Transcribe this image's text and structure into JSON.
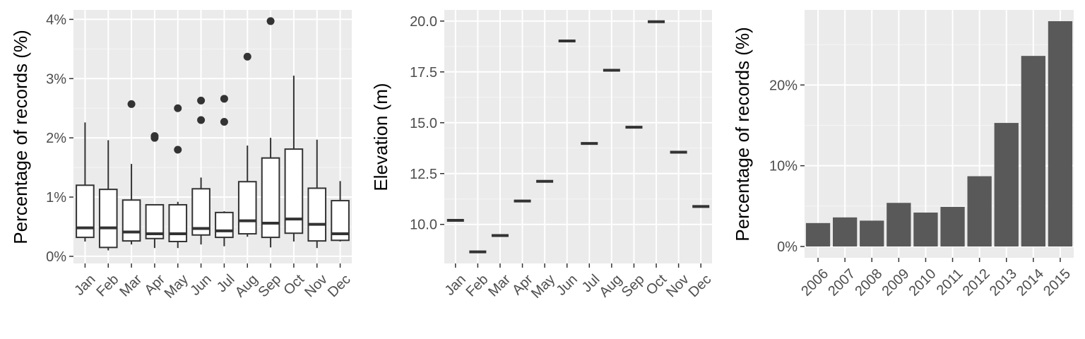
{
  "colors": {
    "panel_bg": "#ebebeb",
    "grid_major": "#ffffff",
    "grid_minor": "#f5f5f5",
    "bar_fill": "#595959",
    "mark_dark": "#333333",
    "tick_text": "#4d4d4d"
  },
  "chart_data": [
    {
      "type": "boxplot",
      "title": "",
      "xlabel": "",
      "ylabel": "Percentage of records (%)",
      "categories": [
        "Jan",
        "Feb",
        "Mar",
        "Apr",
        "May",
        "Jun",
        "Jul",
        "Aug",
        "Sep",
        "Oct",
        "Nov",
        "Dec"
      ],
      "boxes": [
        {
          "min": 0.25,
          "q1": 0.32,
          "median": 0.48,
          "q3": 1.2,
          "max": 2.26,
          "outliers": []
        },
        {
          "min": 0.1,
          "q1": 0.15,
          "median": 0.48,
          "q3": 1.13,
          "max": 1.96,
          "outliers": []
        },
        {
          "min": 0.2,
          "q1": 0.26,
          "median": 0.41,
          "q3": 0.95,
          "max": 1.56,
          "outliers": [
            2.57
          ]
        },
        {
          "min": 0.14,
          "q1": 0.3,
          "median": 0.38,
          "q3": 0.87,
          "max": 0.87,
          "outliers": [
            2.0,
            2.03
          ]
        },
        {
          "min": 0.14,
          "q1": 0.25,
          "median": 0.38,
          "q3": 0.87,
          "max": 0.92,
          "outliers": [
            1.8,
            2.5
          ]
        },
        {
          "min": 0.2,
          "q1": 0.36,
          "median": 0.47,
          "q3": 1.14,
          "max": 1.33,
          "outliers": [
            2.3,
            2.63
          ]
        },
        {
          "min": 0.17,
          "q1": 0.32,
          "median": 0.43,
          "q3": 0.74,
          "max": 0.76,
          "outliers": [
            2.27,
            2.66
          ]
        },
        {
          "min": 0.33,
          "q1": 0.38,
          "median": 0.6,
          "q3": 1.26,
          "max": 1.87,
          "outliers": [
            3.37
          ]
        },
        {
          "min": 0.15,
          "q1": 0.32,
          "median": 0.56,
          "q3": 1.66,
          "max": 2.0,
          "outliers": [
            3.97
          ]
        },
        {
          "min": 0.25,
          "q1": 0.39,
          "median": 0.63,
          "q3": 1.81,
          "max": 3.05,
          "outliers": []
        },
        {
          "min": 0.14,
          "q1": 0.26,
          "median": 0.54,
          "q3": 1.15,
          "max": 1.97,
          "outliers": []
        },
        {
          "min": 0.25,
          "q1": 0.27,
          "median": 0.38,
          "q3": 0.94,
          "max": 1.27,
          "outliers": []
        }
      ],
      "ylim": [
        -0.12,
        4.16
      ],
      "y_ticks": [
        0,
        1,
        2,
        3,
        4
      ],
      "y_tick_labels": [
        "0%",
        "1%",
        "2%",
        "3%",
        "4%"
      ],
      "grid": true,
      "legend": "none"
    },
    {
      "type": "crossbar",
      "title": "",
      "xlabel": "",
      "ylabel": "Elevation (m)",
      "categories": [
        "Jan",
        "Feb",
        "Mar",
        "Apr",
        "May",
        "Jun",
        "Jul",
        "Aug",
        "Sep",
        "Oct",
        "Nov",
        "Dec"
      ],
      "values": [
        10.2,
        8.65,
        9.45,
        11.15,
        12.12,
        19.02,
        13.98,
        17.58,
        14.78,
        19.97,
        13.55,
        10.88
      ],
      "ylim": [
        8.08,
        20.55
      ],
      "y_ticks": [
        10,
        12.5,
        15,
        17.5,
        20
      ],
      "y_tick_labels": [
        "10.0",
        "12.5",
        "15.0",
        "17.5",
        "20.0"
      ],
      "grid": true,
      "legend": "none"
    },
    {
      "type": "bar",
      "title": "",
      "xlabel": "",
      "ylabel": "Percentage of records (%)",
      "categories": [
        "2006",
        "2007",
        "2008",
        "2009",
        "2010",
        "2011",
        "2012",
        "2013",
        "2014",
        "2015"
      ],
      "values": [
        2.9,
        3.6,
        3.2,
        5.4,
        4.2,
        4.9,
        8.7,
        15.3,
        23.6,
        27.9
      ],
      "ylim": [
        -1.4,
        29.3
      ],
      "y_ticks": [
        0,
        10,
        20
      ],
      "y_tick_labels": [
        "0%",
        "10%",
        "20%"
      ],
      "grid": true,
      "legend": "none"
    }
  ]
}
